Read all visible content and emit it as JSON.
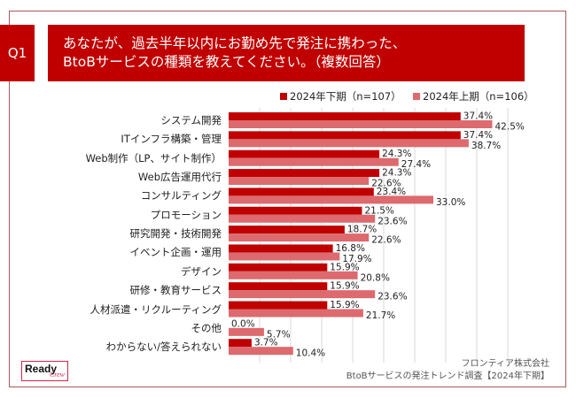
{
  "header": {
    "question_number": "Q1",
    "title_line1": "あなたが、過去半年以内にお勤め先で発注に携わった、",
    "title_line2": "BtoBサービスの種類を教えてください。（複数回答）"
  },
  "colors": {
    "primary": "#c00000",
    "secondary": "#dc6a6e",
    "gridline": "#d9d9d9"
  },
  "chart_data": {
    "type": "bar",
    "orientation": "horizontal",
    "title": "あなたが、過去半年以内にお勤め先で発注に携わった、BtoBサービスの種類を教えてください。（複数回答）",
    "xlabel": "",
    "ylabel": "",
    "xlim": [
      0,
      45
    ],
    "grid": true,
    "grid_step": 5,
    "legend_position": "top-right",
    "categories": [
      "システム開発",
      "ITインフラ構築・管理",
      "Web制作（LP、サイト制作）",
      "Web広告運用代行",
      "コンサルティング",
      "プロモーション",
      "研究開発・技術開発",
      "イベント企画・運用",
      "デザイン",
      "研修・教育サービス",
      "人材派遣・リクルーティング",
      "その他",
      "わからない/答えられない"
    ],
    "series": [
      {
        "name": "2024年下期（n=107）",
        "color": "#c00000",
        "values": [
          37.4,
          37.4,
          24.3,
          24.3,
          23.4,
          21.5,
          18.7,
          16.8,
          15.9,
          15.9,
          15.9,
          0.0,
          3.7
        ]
      },
      {
        "name": "2024年上期（n=106）",
        "color": "#dc6a6e",
        "values": [
          42.5,
          38.7,
          27.4,
          22.6,
          33.0,
          23.6,
          22.6,
          17.9,
          20.8,
          23.6,
          21.7,
          5.7,
          10.4
        ]
      }
    ],
    "value_format": "{v}%"
  },
  "footer": {
    "company": "フロンティア株式会社",
    "survey": "BtoBサービスの発注トレンド調査【2024年下期】"
  },
  "logo": {
    "word1": "Ready",
    "word2": "Crew"
  }
}
